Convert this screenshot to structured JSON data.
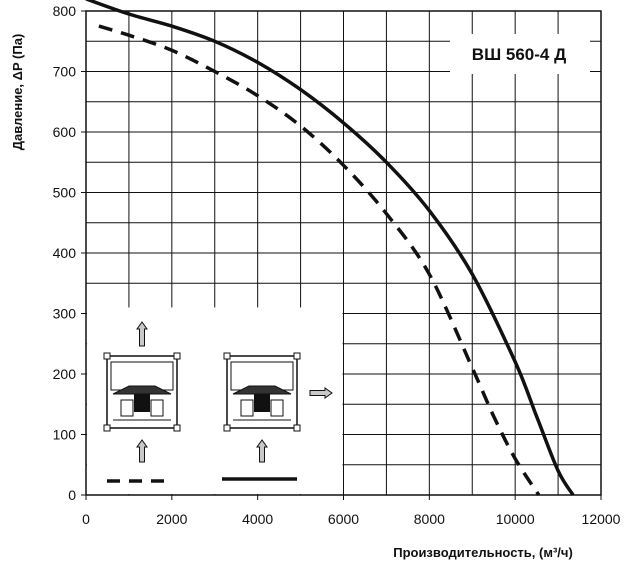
{
  "chart_data": {
    "type": "line",
    "title": "",
    "model_label": "ВШ 560-4 Д",
    "xlabel": "Производительность, (м³/ч)",
    "ylabel": "Давление, ΔP (Па)",
    "xlim": [
      0,
      12000
    ],
    "ylim": [
      0,
      800
    ],
    "x_ticks": [
      0,
      2000,
      4000,
      6000,
      8000,
      10000,
      12000
    ],
    "y_ticks": [
      0,
      100,
      200,
      300,
      400,
      500,
      600,
      700,
      800
    ],
    "grid": true,
    "series": [
      {
        "style": "solid",
        "x": [
          0,
          1000,
          2000,
          3000,
          4000,
          5000,
          6000,
          7000,
          8000,
          9000,
          10000,
          10500,
          11000,
          11350
        ],
        "y": [
          820,
          795,
          775,
          750,
          715,
          670,
          615,
          550,
          470,
          365,
          220,
          130,
          40,
          0
        ]
      },
      {
        "style": "dashed",
        "x": [
          300,
          1000,
          2000,
          3000,
          4000,
          5000,
          6000,
          7000,
          8000,
          9000,
          9500,
          10000,
          10550
        ],
        "y": [
          775,
          760,
          735,
          700,
          660,
          610,
          545,
          465,
          365,
          210,
          130,
          60,
          0
        ]
      }
    ]
  },
  "inset": {
    "legend": [
      {
        "style": "dashed",
        "direction": "vertical-flow"
      },
      {
        "style": "solid",
        "direction": "side-flow"
      }
    ]
  }
}
